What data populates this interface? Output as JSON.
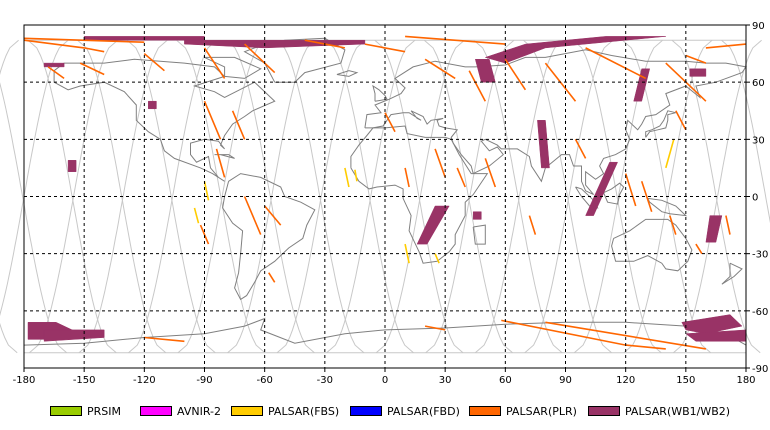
{
  "map": {
    "x_ticks": [
      "-180",
      "-150",
      "-120",
      "-90",
      "-60",
      "-30",
      "0",
      "30",
      "60",
      "90",
      "120",
      "150",
      "180"
    ],
    "y_ticks": [
      "90",
      "60",
      "30",
      "0",
      "-30",
      "-60",
      "-90"
    ],
    "lon_range": [
      -180,
      180
    ],
    "lat_range": [
      -90,
      90
    ],
    "grid": "dashed"
  },
  "legend": {
    "items": [
      {
        "label": "PRSIM",
        "color": "#99cc00"
      },
      {
        "label": "AVNIR-2",
        "color": "#ff00ff"
      },
      {
        "label": "PALSAR(FBS)",
        "color": "#ffcc00"
      },
      {
        "label": "PALSAR(FBD)",
        "color": "#0000ff"
      },
      {
        "label": "PALSAR(PLR)",
        "color": "#ff6600"
      },
      {
        "label": "PALSAR(WB1/WB2)",
        "color": "#993366"
      }
    ]
  },
  "colors": {
    "wb": "#993366",
    "plr": "#ff6600",
    "fbs": "#ffcc00",
    "coast": "#808080",
    "orbit": "#c8c8c8"
  }
}
